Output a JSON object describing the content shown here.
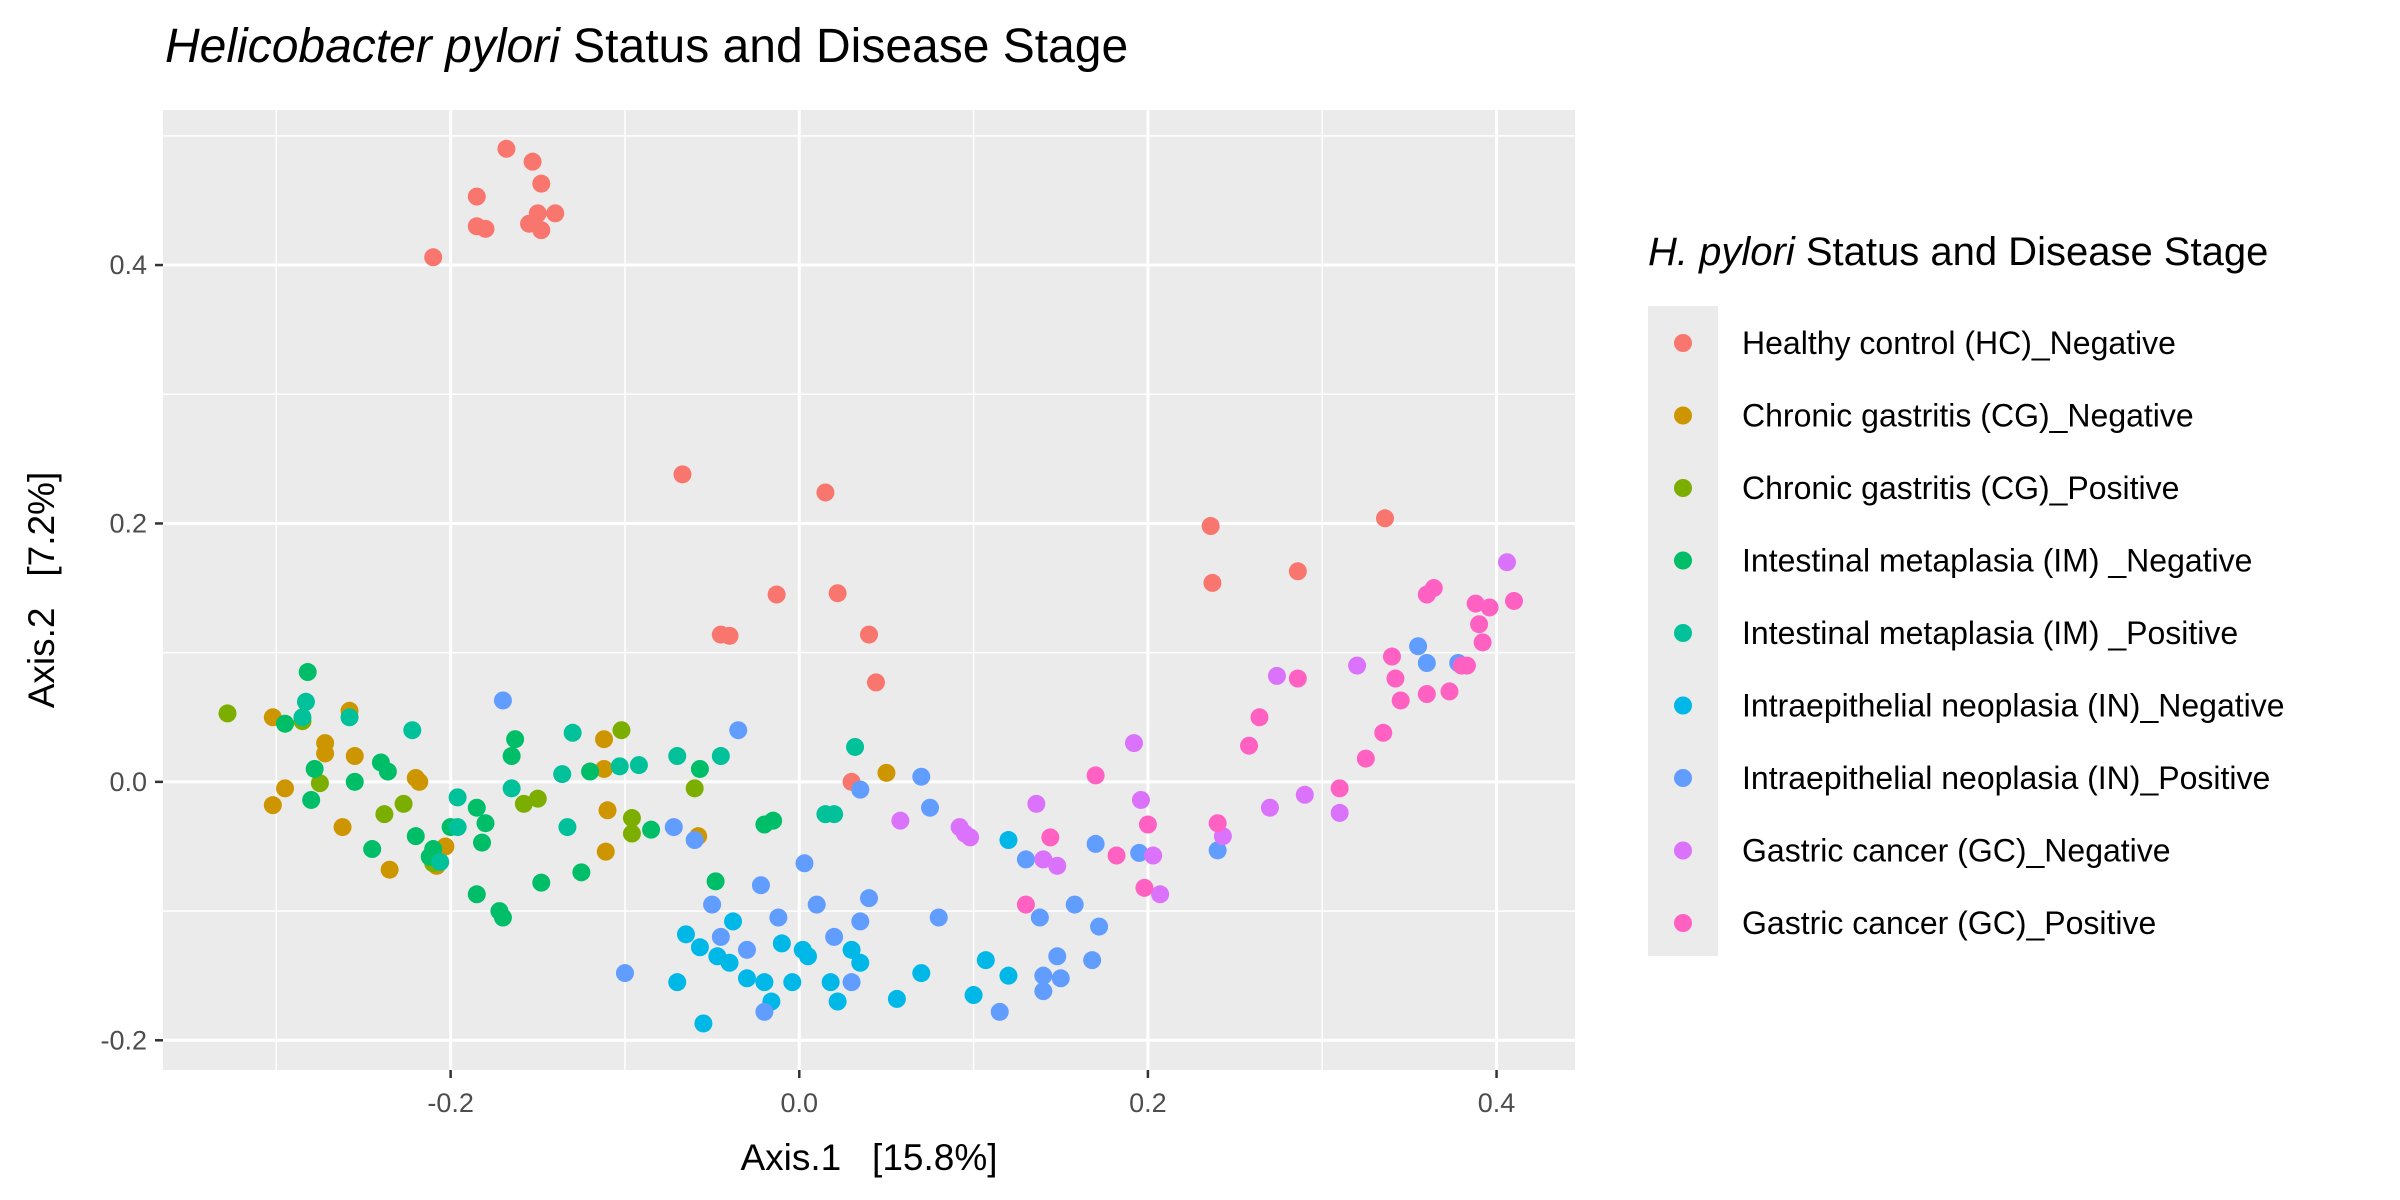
{
  "chart_data": {
    "type": "scatter",
    "title_italic": "Helicobacter pylori",
    "title_rest": " Status and Disease Stage",
    "xlabel": "Axis.1   [15.8%]",
    "ylabel": "Axis.2   [7.2%]",
    "xlim": [
      -0.365,
      0.445
    ],
    "ylim": [
      -0.223,
      0.52
    ],
    "x_ticks": [
      -0.2,
      0.0,
      0.2,
      0.4
    ],
    "x_tick_labels": [
      "-0.2",
      "0.0",
      "0.2",
      "0.4"
    ],
    "y_ticks": [
      -0.2,
      0.0,
      0.2,
      0.4
    ],
    "y_tick_labels": [
      "-0.2",
      "0.0",
      "0.2",
      "0.4"
    ],
    "grid": true,
    "legend_position": "right",
    "legend_title_italic": "H. pylori",
    "legend_title_rest": " Status and Disease Stage",
    "series": [
      {
        "name": "Healthy control (HC)_Negative",
        "color": "#F8766D",
        "points": [
          [
            -0.168,
            0.49
          ],
          [
            -0.153,
            0.48
          ],
          [
            -0.185,
            0.453
          ],
          [
            -0.148,
            0.463
          ],
          [
            -0.185,
            0.43
          ],
          [
            -0.18,
            0.428
          ],
          [
            -0.155,
            0.432
          ],
          [
            -0.15,
            0.44
          ],
          [
            -0.14,
            0.44
          ],
          [
            -0.148,
            0.427
          ],
          [
            -0.21,
            0.406
          ],
          [
            -0.067,
            0.238
          ],
          [
            0.015,
            0.224
          ],
          [
            -0.045,
            0.114
          ],
          [
            -0.04,
            0.113
          ],
          [
            -0.013,
            0.145
          ],
          [
            0.022,
            0.146
          ],
          [
            0.04,
            0.114
          ],
          [
            0.044,
            0.077
          ],
          [
            0.03,
            0.0
          ],
          [
            0.236,
            0.198
          ],
          [
            0.237,
            0.154
          ],
          [
            0.286,
            0.163
          ],
          [
            0.336,
            0.204
          ]
        ]
      },
      {
        "name": "Chronic gastritis (CG)_Negative",
        "color": "#CD9600",
        "points": [
          [
            -0.302,
            0.05
          ],
          [
            -0.258,
            0.055
          ],
          [
            -0.272,
            0.03
          ],
          [
            -0.272,
            0.022
          ],
          [
            -0.255,
            0.02
          ],
          [
            -0.235,
            -0.068
          ],
          [
            -0.262,
            -0.035
          ],
          [
            -0.302,
            -0.018
          ],
          [
            -0.295,
            -0.005
          ],
          [
            -0.218,
            0.0
          ],
          [
            -0.22,
            0.003
          ],
          [
            -0.203,
            -0.05
          ],
          [
            -0.208,
            -0.065
          ],
          [
            -0.112,
            0.033
          ],
          [
            -0.112,
            0.01
          ],
          [
            -0.11,
            -0.022
          ],
          [
            -0.111,
            -0.054
          ],
          [
            -0.058,
            -0.042
          ],
          [
            0.05,
            0.007
          ]
        ]
      },
      {
        "name": "Chronic gastritis (CG)_Positive",
        "color": "#7CAE00",
        "points": [
          [
            -0.328,
            0.053
          ],
          [
            -0.285,
            0.047
          ],
          [
            -0.275,
            -0.001
          ],
          [
            -0.238,
            -0.025
          ],
          [
            -0.227,
            -0.017
          ],
          [
            -0.21,
            -0.063
          ],
          [
            -0.158,
            -0.017
          ],
          [
            -0.15,
            -0.013
          ],
          [
            -0.102,
            0.04
          ],
          [
            -0.096,
            -0.028
          ],
          [
            -0.096,
            -0.04
          ],
          [
            -0.06,
            -0.005
          ]
        ]
      },
      {
        "name": "Intestinal metaplasia (IM)  _Negative",
        "color": "#00BE67",
        "points": [
          [
            -0.282,
            0.085
          ],
          [
            -0.295,
            0.045
          ],
          [
            -0.278,
            0.01
          ],
          [
            -0.28,
            -0.014
          ],
          [
            -0.255,
            0.0
          ],
          [
            -0.24,
            0.015
          ],
          [
            -0.236,
            0.008
          ],
          [
            -0.245,
            -0.052
          ],
          [
            -0.22,
            -0.042
          ],
          [
            -0.21,
            -0.052
          ],
          [
            -0.212,
            -0.058
          ],
          [
            -0.2,
            -0.035
          ],
          [
            -0.185,
            -0.02
          ],
          [
            -0.18,
            -0.032
          ],
          [
            -0.182,
            -0.047
          ],
          [
            -0.165,
            0.02
          ],
          [
            -0.163,
            0.033
          ],
          [
            -0.172,
            -0.1
          ],
          [
            -0.17,
            -0.105
          ],
          [
            -0.185,
            -0.087
          ],
          [
            -0.148,
            -0.078
          ],
          [
            -0.125,
            -0.07
          ],
          [
            -0.12,
            0.008
          ],
          [
            -0.085,
            -0.037
          ],
          [
            -0.057,
            0.01
          ],
          [
            -0.048,
            -0.077
          ],
          [
            -0.02,
            -0.033
          ],
          [
            -0.015,
            -0.03
          ]
        ]
      },
      {
        "name": "Intestinal metaplasia (IM)  _Positive",
        "color": "#00C19A",
        "points": [
          [
            -0.283,
            0.062
          ],
          [
            -0.285,
            0.05
          ],
          [
            -0.258,
            0.05
          ],
          [
            -0.222,
            0.04
          ],
          [
            -0.206,
            -0.062
          ],
          [
            -0.196,
            -0.012
          ],
          [
            -0.196,
            -0.035
          ],
          [
            -0.165,
            -0.005
          ],
          [
            -0.13,
            0.038
          ],
          [
            -0.133,
            -0.035
          ],
          [
            -0.136,
            0.006
          ],
          [
            -0.092,
            0.013
          ],
          [
            -0.07,
            0.02
          ],
          [
            -0.045,
            0.02
          ],
          [
            0.015,
            -0.025
          ],
          [
            0.02,
            -0.025
          ],
          [
            0.032,
            0.027
          ],
          [
            -0.103,
            0.012
          ]
        ]
      },
      {
        "name": "Intraepithelial neoplasia (IN)_Negative",
        "color": "#00B8E7",
        "points": [
          [
            -0.065,
            -0.118
          ],
          [
            -0.057,
            -0.128
          ],
          [
            -0.047,
            -0.135
          ],
          [
            -0.038,
            -0.108
          ],
          [
            -0.03,
            -0.152
          ],
          [
            -0.02,
            -0.155
          ],
          [
            -0.016,
            -0.17
          ],
          [
            -0.01,
            -0.125
          ],
          [
            -0.004,
            -0.155
          ],
          [
            0.005,
            -0.135
          ],
          [
            0.018,
            -0.155
          ],
          [
            0.022,
            -0.17
          ],
          [
            0.035,
            -0.14
          ],
          [
            0.056,
            -0.168
          ],
          [
            0.07,
            -0.148
          ],
          [
            0.1,
            -0.165
          ],
          [
            0.107,
            -0.138
          ],
          [
            0.12,
            -0.15
          ],
          [
            0.12,
            -0.045
          ],
          [
            -0.07,
            -0.155
          ],
          [
            -0.055,
            -0.187
          ],
          [
            0.002,
            -0.13
          ],
          [
            0.03,
            -0.13
          ],
          [
            -0.04,
            -0.14
          ]
        ]
      },
      {
        "name": "Intraepithelial neoplasia (IN)_Positive",
        "color": "#619CFF",
        "points": [
          [
            -0.17,
            0.063
          ],
          [
            -0.035,
            0.04
          ],
          [
            -0.072,
            -0.035
          ],
          [
            -0.06,
            -0.045
          ],
          [
            -0.05,
            -0.095
          ],
          [
            -0.045,
            -0.12
          ],
          [
            -0.022,
            -0.08
          ],
          [
            -0.012,
            -0.105
          ],
          [
            0.003,
            -0.063
          ],
          [
            0.01,
            -0.095
          ],
          [
            0.02,
            -0.12
          ],
          [
            0.04,
            -0.09
          ],
          [
            0.035,
            -0.108
          ],
          [
            0.075,
            -0.02
          ],
          [
            0.08,
            -0.105
          ],
          [
            0.07,
            0.004
          ],
          [
            0.035,
            -0.006
          ],
          [
            0.13,
            -0.06
          ],
          [
            0.138,
            -0.105
          ],
          [
            0.14,
            -0.15
          ],
          [
            0.148,
            -0.135
          ],
          [
            0.15,
            -0.152
          ],
          [
            0.158,
            -0.095
          ],
          [
            0.17,
            -0.048
          ],
          [
            0.172,
            -0.112
          ],
          [
            0.168,
            -0.138
          ],
          [
            0.115,
            -0.178
          ],
          [
            0.14,
            -0.162
          ],
          [
            0.195,
            -0.055
          ],
          [
            0.24,
            -0.053
          ],
          [
            0.355,
            0.105
          ],
          [
            0.36,
            0.092
          ],
          [
            0.378,
            0.092
          ],
          [
            -0.1,
            -0.148
          ],
          [
            -0.02,
            -0.178
          ],
          [
            0.03,
            -0.155
          ],
          [
            -0.03,
            -0.13
          ]
        ]
      },
      {
        "name": "Gastric cancer (GC)_Negative",
        "color": "#DB72FB",
        "points": [
          [
            0.058,
            -0.03
          ],
          [
            0.092,
            -0.035
          ],
          [
            0.095,
            -0.04
          ],
          [
            0.098,
            -0.043
          ],
          [
            0.136,
            -0.017
          ],
          [
            0.14,
            -0.06
          ],
          [
            0.148,
            -0.065
          ],
          [
            0.192,
            0.03
          ],
          [
            0.196,
            -0.014
          ],
          [
            0.203,
            -0.057
          ],
          [
            0.207,
            -0.087
          ],
          [
            0.243,
            -0.042
          ],
          [
            0.274,
            0.082
          ],
          [
            0.27,
            -0.02
          ],
          [
            0.29,
            -0.01
          ],
          [
            0.32,
            0.09
          ],
          [
            0.31,
            -0.024
          ],
          [
            0.406,
            0.17
          ]
        ]
      },
      {
        "name": "Gastric cancer (GC)_Positive",
        "color": "#FF61C3",
        "points": [
          [
            0.13,
            -0.095
          ],
          [
            0.144,
            -0.043
          ],
          [
            0.17,
            0.005
          ],
          [
            0.182,
            -0.057
          ],
          [
            0.198,
            -0.082
          ],
          [
            0.2,
            -0.033
          ],
          [
            0.24,
            -0.032
          ],
          [
            0.258,
            0.028
          ],
          [
            0.264,
            0.05
          ],
          [
            0.286,
            0.08
          ],
          [
            0.31,
            -0.005
          ],
          [
            0.325,
            0.018
          ],
          [
            0.335,
            0.038
          ],
          [
            0.34,
            0.097
          ],
          [
            0.342,
            0.08
          ],
          [
            0.345,
            0.063
          ],
          [
            0.36,
            0.145
          ],
          [
            0.364,
            0.15
          ],
          [
            0.36,
            0.068
          ],
          [
            0.373,
            0.07
          ],
          [
            0.38,
            0.09
          ],
          [
            0.383,
            0.09
          ],
          [
            0.388,
            0.138
          ],
          [
            0.39,
            0.122
          ],
          [
            0.392,
            0.108
          ],
          [
            0.396,
            0.135
          ],
          [
            0.41,
            0.14
          ]
        ]
      }
    ]
  }
}
